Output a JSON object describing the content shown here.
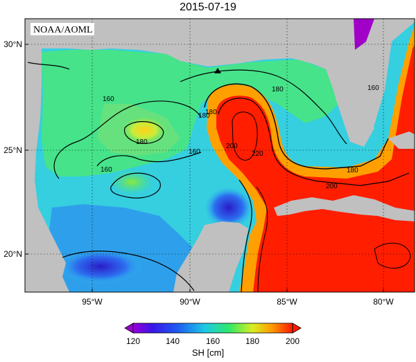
{
  "title": "2015-07-19",
  "watermark": "NOAA/AOML",
  "lat_ticks": [
    "30°N",
    "25°N",
    "20°N"
  ],
  "lon_ticks": [
    "95°W",
    "90°W",
    "85°W",
    "80°W"
  ],
  "contour_labels": [
    "160",
    "180",
    "160",
    "180",
    "180",
    "200",
    "220",
    "200",
    "180",
    "160",
    "160",
    "180"
  ],
  "colorbar": {
    "label": "SH [cm]",
    "ticks": [
      "120",
      "140",
      "160",
      "180",
      "200"
    ]
  },
  "colors": {
    "land": "#c0c0c0",
    "low": "#8a00d8",
    "blue": "#1a3fe0",
    "cyan": "#22c8e8",
    "green": "#3de86a",
    "yellow": "#f2e21c",
    "orange": "#ff8a00",
    "red": "#ff1a00"
  }
}
